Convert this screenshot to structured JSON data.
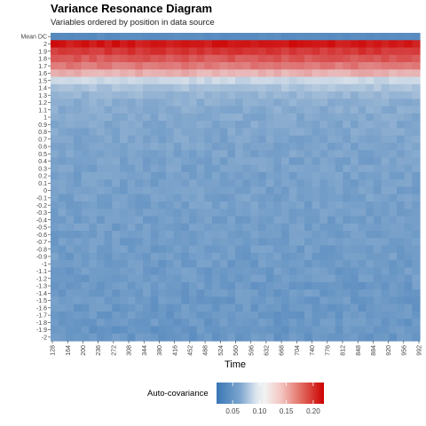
{
  "chart_data": {
    "type": "heatmap",
    "title": "Variance Resonance Diagram",
    "subtitle": "Variables ordered by position in data source",
    "xlabel": "Time",
    "ylabel": "",
    "y_tick_labels": [
      "Mean DC",
      "2",
      "1.9",
      "1.8",
      "1.7",
      "1.6",
      "1.5",
      "1.4",
      "1.3",
      "1.2",
      "1.1",
      "1",
      "0.9",
      "0.8",
      "0.7",
      "0.6",
      "0.5",
      "0.4",
      "0.3",
      "0.2",
      "0.1",
      "0",
      "-0.1",
      "-0.2",
      "-0.3",
      "-0.4",
      "-0.5",
      "-0.6",
      "-0.7",
      "-0.8",
      "-0.9",
      "-1",
      "-1.1",
      "-1.2",
      "-1.3",
      "-1.4",
      "-1.5",
      "-1.6",
      "-1.7",
      "-1.8",
      "-1.9",
      "-2"
    ],
    "x_tick_labels": [
      "128",
      "164",
      "200",
      "236",
      "272",
      "308",
      "344",
      "380",
      "416",
      "452",
      "488",
      "524",
      "560",
      "596",
      "632",
      "668",
      "704",
      "740",
      "776",
      "812",
      "848",
      "884",
      "920",
      "956",
      "992"
    ],
    "x_range": [
      128,
      992
    ],
    "row_levels": [
      0.035,
      0.21,
      0.195,
      0.18,
      0.165,
      0.14,
      0.09,
      0.075,
      0.065,
      0.06,
      0.058,
      0.056,
      0.055,
      0.054,
      0.053,
      0.052,
      0.052,
      0.051,
      0.051,
      0.05,
      0.05,
      0.05,
      0.05,
      0.049,
      0.049,
      0.048,
      0.048,
      0.048,
      0.047,
      0.047,
      0.047,
      0.046,
      0.046,
      0.046,
      0.045,
      0.045,
      0.045,
      0.044,
      0.044,
      0.044,
      0.043,
      0.043
    ],
    "legend": {
      "title": "Auto-covariance",
      "ticks": [
        0.05,
        0.1,
        0.15,
        0.2
      ],
      "tick_labels": [
        "0.05",
        "0.10",
        "0.15",
        "0.20"
      ],
      "range": [
        0.02,
        0.22
      ],
      "colors": [
        "#3a77b5",
        "#f2f2f2",
        "#cc0000"
      ],
      "placement": "bottom"
    }
  }
}
